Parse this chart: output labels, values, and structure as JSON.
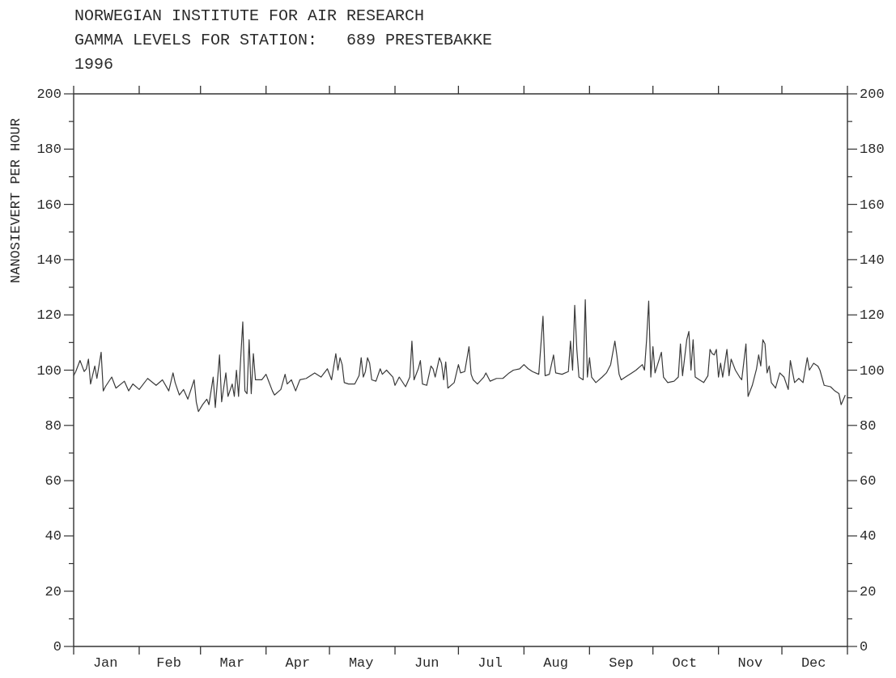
{
  "chart_data": {
    "type": "line",
    "title": "NORWEGIAN INSTITUTE FOR AIR RESEARCH",
    "subtitle": "GAMMA LEVELS FOR STATION:   689 PRESTEBAKKE",
    "annotations": [
      "1996"
    ],
    "ylabel": "NANOSIEVERT PER HOUR",
    "color": "#3a3a3a",
    "marker": "none",
    "line_style": "solid",
    "x": [
      "1996-01-01",
      "1996-01-02",
      "1996-01-04",
      "1996-01-05",
      "1996-01-06",
      "1996-01-07",
      "1996-01-08",
      "1996-01-09",
      "1996-01-11",
      "1996-01-12",
      "1996-01-14",
      "1996-01-15",
      "1996-01-16",
      "1996-01-19",
      "1996-01-21",
      "1996-01-25",
      "1996-01-27",
      "1996-01-29",
      "1996-02-01",
      "1996-02-05",
      "1996-02-09",
      "1996-02-12",
      "1996-02-15",
      "1996-02-17",
      "1996-02-18",
      "1996-02-20",
      "1996-02-22",
      "1996-02-24",
      "1996-02-27",
      "1996-02-28",
      "1996-02-29",
      "1996-03-02",
      "1996-03-04",
      "1996-03-05",
      "1996-03-07",
      "1996-03-08",
      "1996-03-10",
      "1996-03-11",
      "1996-03-13",
      "1996-03-14",
      "1996-03-16",
      "1996-03-17",
      "1996-03-18",
      "1996-03-19",
      "1996-03-20",
      "1996-03-21",
      "1996-03-22",
      "1996-03-23",
      "1996-03-24",
      "1996-03-25",
      "1996-03-26",
      "1996-03-27",
      "1996-03-30",
      "1996-04-01",
      "1996-04-02",
      "1996-04-04",
      "1996-04-05",
      "1996-04-08",
      "1996-04-10",
      "1996-04-11",
      "1996-04-13",
      "1996-04-15",
      "1996-04-17",
      "1996-04-20",
      "1996-04-24",
      "1996-04-27",
      "1996-04-30",
      "1996-05-02",
      "1996-05-04",
      "1996-05-05",
      "1996-05-06",
      "1996-05-07",
      "1996-05-08",
      "1996-05-10",
      "1996-05-13",
      "1996-05-15",
      "1996-05-16",
      "1996-05-17",
      "1996-05-18",
      "1996-05-19",
      "1996-05-20",
      "1996-05-21",
      "1996-05-23",
      "1996-05-25",
      "1996-05-26",
      "1996-05-28",
      "1996-05-31",
      "1996-06-01",
      "1996-06-03",
      "1996-06-06",
      "1996-06-08",
      "1996-06-09",
      "1996-06-10",
      "1996-06-12",
      "1996-06-13",
      "1996-06-14",
      "1996-06-16",
      "1996-06-18",
      "1996-06-19",
      "1996-06-20",
      "1996-06-22",
      "1996-06-23",
      "1996-06-24",
      "1996-06-25",
      "1996-06-26",
      "1996-06-29",
      "1996-07-01",
      "1996-07-02",
      "1996-07-04",
      "1996-07-06",
      "1996-07-07",
      "1996-07-08",
      "1996-07-10",
      "1996-07-13",
      "1996-07-14",
      "1996-07-16",
      "1996-07-19",
      "1996-07-22",
      "1996-07-25",
      "1996-07-27",
      "1996-07-30",
      "1996-08-01",
      "1996-08-03",
      "1996-08-05",
      "1996-08-08",
      "1996-08-10",
      "1996-08-11",
      "1996-08-13",
      "1996-08-15",
      "1996-08-16",
      "1996-08-19",
      "1996-08-22",
      "1996-08-23",
      "1996-08-24",
      "1996-08-25",
      "1996-08-26",
      "1996-08-27",
      "1996-08-29",
      "1996-08-30",
      "1996-08-31",
      "1996-09-01",
      "1996-09-02",
      "1996-09-04",
      "1996-09-07",
      "1996-09-09",
      "1996-09-11",
      "1996-09-13",
      "1996-09-14",
      "1996-09-15",
      "1996-09-16",
      "1996-09-18",
      "1996-09-21",
      "1996-09-23",
      "1996-09-26",
      "1996-09-27",
      "1996-09-28",
      "1996-09-29",
      "1996-09-30",
      "1996-10-01",
      "1996-10-02",
      "1996-10-05",
      "1996-10-06",
      "1996-10-08",
      "1996-10-11",
      "1996-10-13",
      "1996-10-14",
      "1996-10-15",
      "1996-10-17",
      "1996-10-18",
      "1996-10-19",
      "1996-10-20",
      "1996-10-21",
      "1996-10-23",
      "1996-10-25",
      "1996-10-27",
      "1996-10-28",
      "1996-10-29",
      "1996-10-30",
      "1996-10-31",
      "1996-11-01",
      "1996-11-02",
      "1996-11-03",
      "1996-11-05",
      "1996-11-06",
      "1996-11-07",
      "1996-11-09",
      "1996-11-11",
      "1996-11-12",
      "1996-11-14",
      "1996-11-15",
      "1996-11-17",
      "1996-11-19",
      "1996-11-20",
      "1996-11-21",
      "1996-11-22",
      "1996-11-23",
      "1996-11-24",
      "1996-11-25",
      "1996-11-26",
      "1996-11-28",
      "1996-11-30",
      "1996-12-02",
      "1996-12-04",
      "1996-12-05",
      "1996-12-07",
      "1996-12-09",
      "1996-12-11",
      "1996-12-13",
      "1996-12-14",
      "1996-12-16",
      "1996-12-18",
      "1996-12-19",
      "1996-12-21",
      "1996-12-24",
      "1996-12-26",
      "1996-12-28",
      "1996-12-29",
      "1996-12-31"
    ],
    "values": [
      98,
      99.5,
      103.5,
      101.5,
      99.5,
      100.5,
      104,
      95,
      101.5,
      97,
      106.5,
      92.5,
      94,
      97.5,
      93.5,
      96,
      92.5,
      95,
      93,
      97,
      94.5,
      96.5,
      92.5,
      99,
      95.5,
      91,
      93,
      89.5,
      96.5,
      88.5,
      85,
      87.5,
      89.5,
      87.5,
      97.5,
      86.5,
      105.5,
      88.5,
      99,
      90.5,
      95,
      90.5,
      100,
      90.5,
      104,
      117.5,
      92.5,
      91.5,
      111,
      91.5,
      106,
      96.5,
      96.5,
      98.5,
      96.5,
      92.5,
      91,
      93,
      98.5,
      95,
      96.5,
      92.5,
      96.5,
      97,
      99,
      97.5,
      100.5,
      96.5,
      106,
      100,
      104.5,
      102,
      95.5,
      95,
      95,
      98,
      104.5,
      97.5,
      99.5,
      104.5,
      102.5,
      96.5,
      96,
      100.5,
      98.5,
      100,
      97.5,
      94.5,
      97.5,
      94,
      97.5,
      110.5,
      96.5,
      100.5,
      103.5,
      95,
      94.5,
      101.5,
      100.5,
      97.5,
      104.5,
      102.5,
      96.5,
      103,
      93.5,
      95.5,
      102,
      99,
      99.5,
      108.5,
      98.5,
      96.5,
      95,
      97.5,
      99,
      96,
      97,
      97,
      99,
      100,
      100.5,
      102,
      100.5,
      99.5,
      98.5,
      119.5,
      98,
      98.5,
      105.5,
      99,
      98.5,
      99.5,
      110.5,
      100,
      123.5,
      107.5,
      97.5,
      96.5,
      125.5,
      97.5,
      104.5,
      97.5,
      95.5,
      97.5,
      99,
      102,
      110.5,
      105,
      98.5,
      96.5,
      97.5,
      99,
      100,
      102,
      100,
      111,
      125,
      97.5,
      108.5,
      99,
      106.5,
      97.5,
      95.5,
      96,
      97.5,
      109.5,
      98,
      111,
      114,
      100,
      111,
      97.5,
      96.5,
      95.5,
      98,
      107.5,
      106,
      105.5,
      107.5,
      97.5,
      102.5,
      97.5,
      107.5,
      98,
      104,
      100,
      97.5,
      96.5,
      109.5,
      90.5,
      94.5,
      100.5,
      105.5,
      101.5,
      111,
      109.5,
      99,
      101.5,
      95.5,
      93.5,
      99,
      97.5,
      93,
      103.5,
      95.5,
      97,
      95.5,
      104.5,
      100,
      102.5,
      101.5,
      100,
      94.5,
      94,
      92.5,
      91.5,
      87.5,
      91
    ],
    "xlim": [
      "1996-01-01",
      "1997-01-01"
    ],
    "xticks": [
      {
        "value": "1996-01-01",
        "label": null
      },
      {
        "value": "1996-01-16",
        "label": "Jan"
      },
      {
        "value": "1996-02-01",
        "label": null
      },
      {
        "value": "1996-02-15",
        "label": "Feb"
      },
      {
        "value": "1996-03-01",
        "label": null
      },
      {
        "value": "1996-03-16",
        "label": "Mar"
      },
      {
        "value": "1996-04-01",
        "label": null
      },
      {
        "value": "1996-04-16",
        "label": "Apr"
      },
      {
        "value": "1996-05-01",
        "label": null
      },
      {
        "value": "1996-05-16",
        "label": "May"
      },
      {
        "value": "1996-06-01",
        "label": null
      },
      {
        "value": "1996-06-16",
        "label": "Jun"
      },
      {
        "value": "1996-07-01",
        "label": null
      },
      {
        "value": "1996-07-16",
        "label": "Jul"
      },
      {
        "value": "1996-08-01",
        "label": null
      },
      {
        "value": "1996-08-16",
        "label": "Aug"
      },
      {
        "value": "1996-09-01",
        "label": null
      },
      {
        "value": "1996-09-16",
        "label": "Sep"
      },
      {
        "value": "1996-10-01",
        "label": null
      },
      {
        "value": "1996-10-16",
        "label": "Oct"
      },
      {
        "value": "1996-11-01",
        "label": null
      },
      {
        "value": "1996-11-16",
        "label": "Nov"
      },
      {
        "value": "1996-12-01",
        "label": null
      },
      {
        "value": "1996-12-16",
        "label": "Dec"
      },
      {
        "value": "1997-01-01",
        "label": null
      }
    ],
    "ylim": [
      0,
      200
    ],
    "yticks": [
      0,
      {
        "value": 10,
        "label": null
      },
      20,
      {
        "value": 30,
        "label": null
      },
      40,
      {
        "value": 50,
        "label": null
      },
      60,
      {
        "value": 70,
        "label": null
      },
      80,
      {
        "value": 90,
        "label": null
      },
      100,
      {
        "value": 110,
        "label": null
      },
      120,
      {
        "value": 130,
        "label": null
      },
      140,
      {
        "value": 150,
        "label": null
      },
      160,
      {
        "value": 170,
        "label": null
      },
      180,
      {
        "value": 190,
        "label": null
      },
      200
    ],
    "y2lim": [
      0,
      200
    ],
    "y2ticks": [
      0,
      {
        "value": 10,
        "label": null
      },
      20,
      {
        "value": 30,
        "label": null
      },
      40,
      {
        "value": 50,
        "label": null
      },
      60,
      {
        "value": 70,
        "label": null
      },
      80,
      {
        "value": 90,
        "label": null
      },
      100,
      {
        "value": 110,
        "label": null
      },
      120,
      {
        "value": 130,
        "label": null
      },
      140,
      {
        "value": 150,
        "label": null
      },
      160,
      {
        "value": 170,
        "label": null
      },
      180,
      {
        "value": 190,
        "label": null
      },
      200
    ]
  }
}
